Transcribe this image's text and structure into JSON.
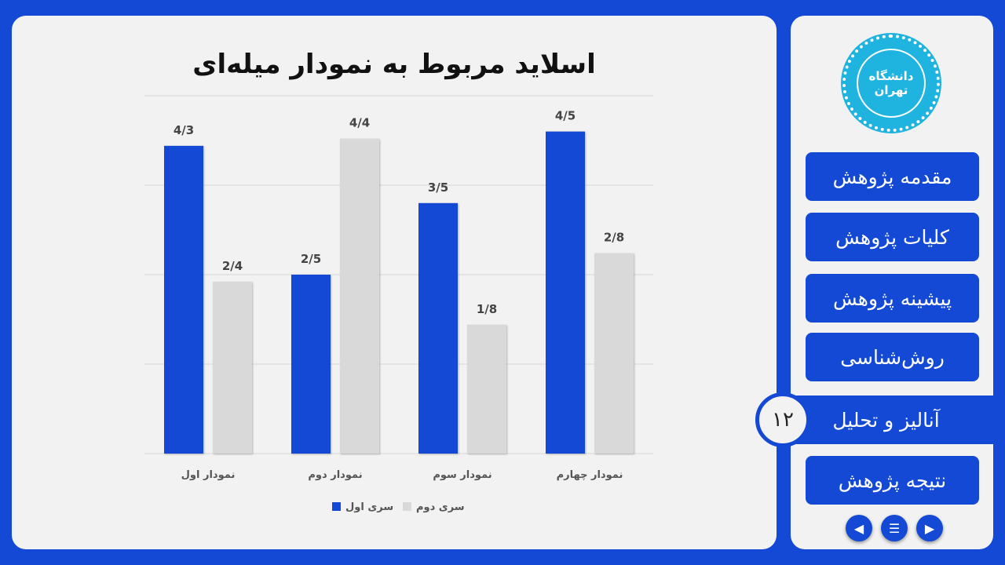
{
  "slide": {
    "title": "اسلاید مربوط به نمودار میله‌ای",
    "page_number": "۱۲"
  },
  "logo": {
    "text": "دانشگاه تهران"
  },
  "sidebar": {
    "items": [
      {
        "label": "مقدمه پژوهش"
      },
      {
        "label": "کلیات پژوهش"
      },
      {
        "label": "پیشینه پژوهش"
      },
      {
        "label": "روش‌شناسی"
      },
      {
        "label": "آنالیز و تحلیل",
        "active": true
      },
      {
        "label": "نتیجه پژوهش"
      }
    ]
  },
  "controls": {
    "prev_icon": "triangle-left",
    "menu_icon": "menu",
    "next_icon": "triangle-right"
  },
  "colors": {
    "accent": "#1349d4",
    "series2": "#d9d9d9"
  },
  "chart_data": {
    "type": "bar",
    "categories": [
      "نمودار اول",
      "نمودار دوم",
      "نمودار سوم",
      "نمودار چهارم"
    ],
    "series": [
      {
        "name": "سری اول",
        "color": "#1349d4",
        "values": [
          4.3,
          2.5,
          3.5,
          4.5
        ],
        "labels": [
          "4/3",
          "2/5",
          "3/5",
          "4/5"
        ]
      },
      {
        "name": "سری دوم",
        "color": "#d9d9d9",
        "values": [
          2.4,
          4.4,
          1.8,
          2.8
        ],
        "labels": [
          "2/4",
          "4/4",
          "1/8",
          "2/8"
        ]
      }
    ],
    "ylim": [
      0,
      5
    ],
    "grid": true,
    "legend": "bottom"
  }
}
